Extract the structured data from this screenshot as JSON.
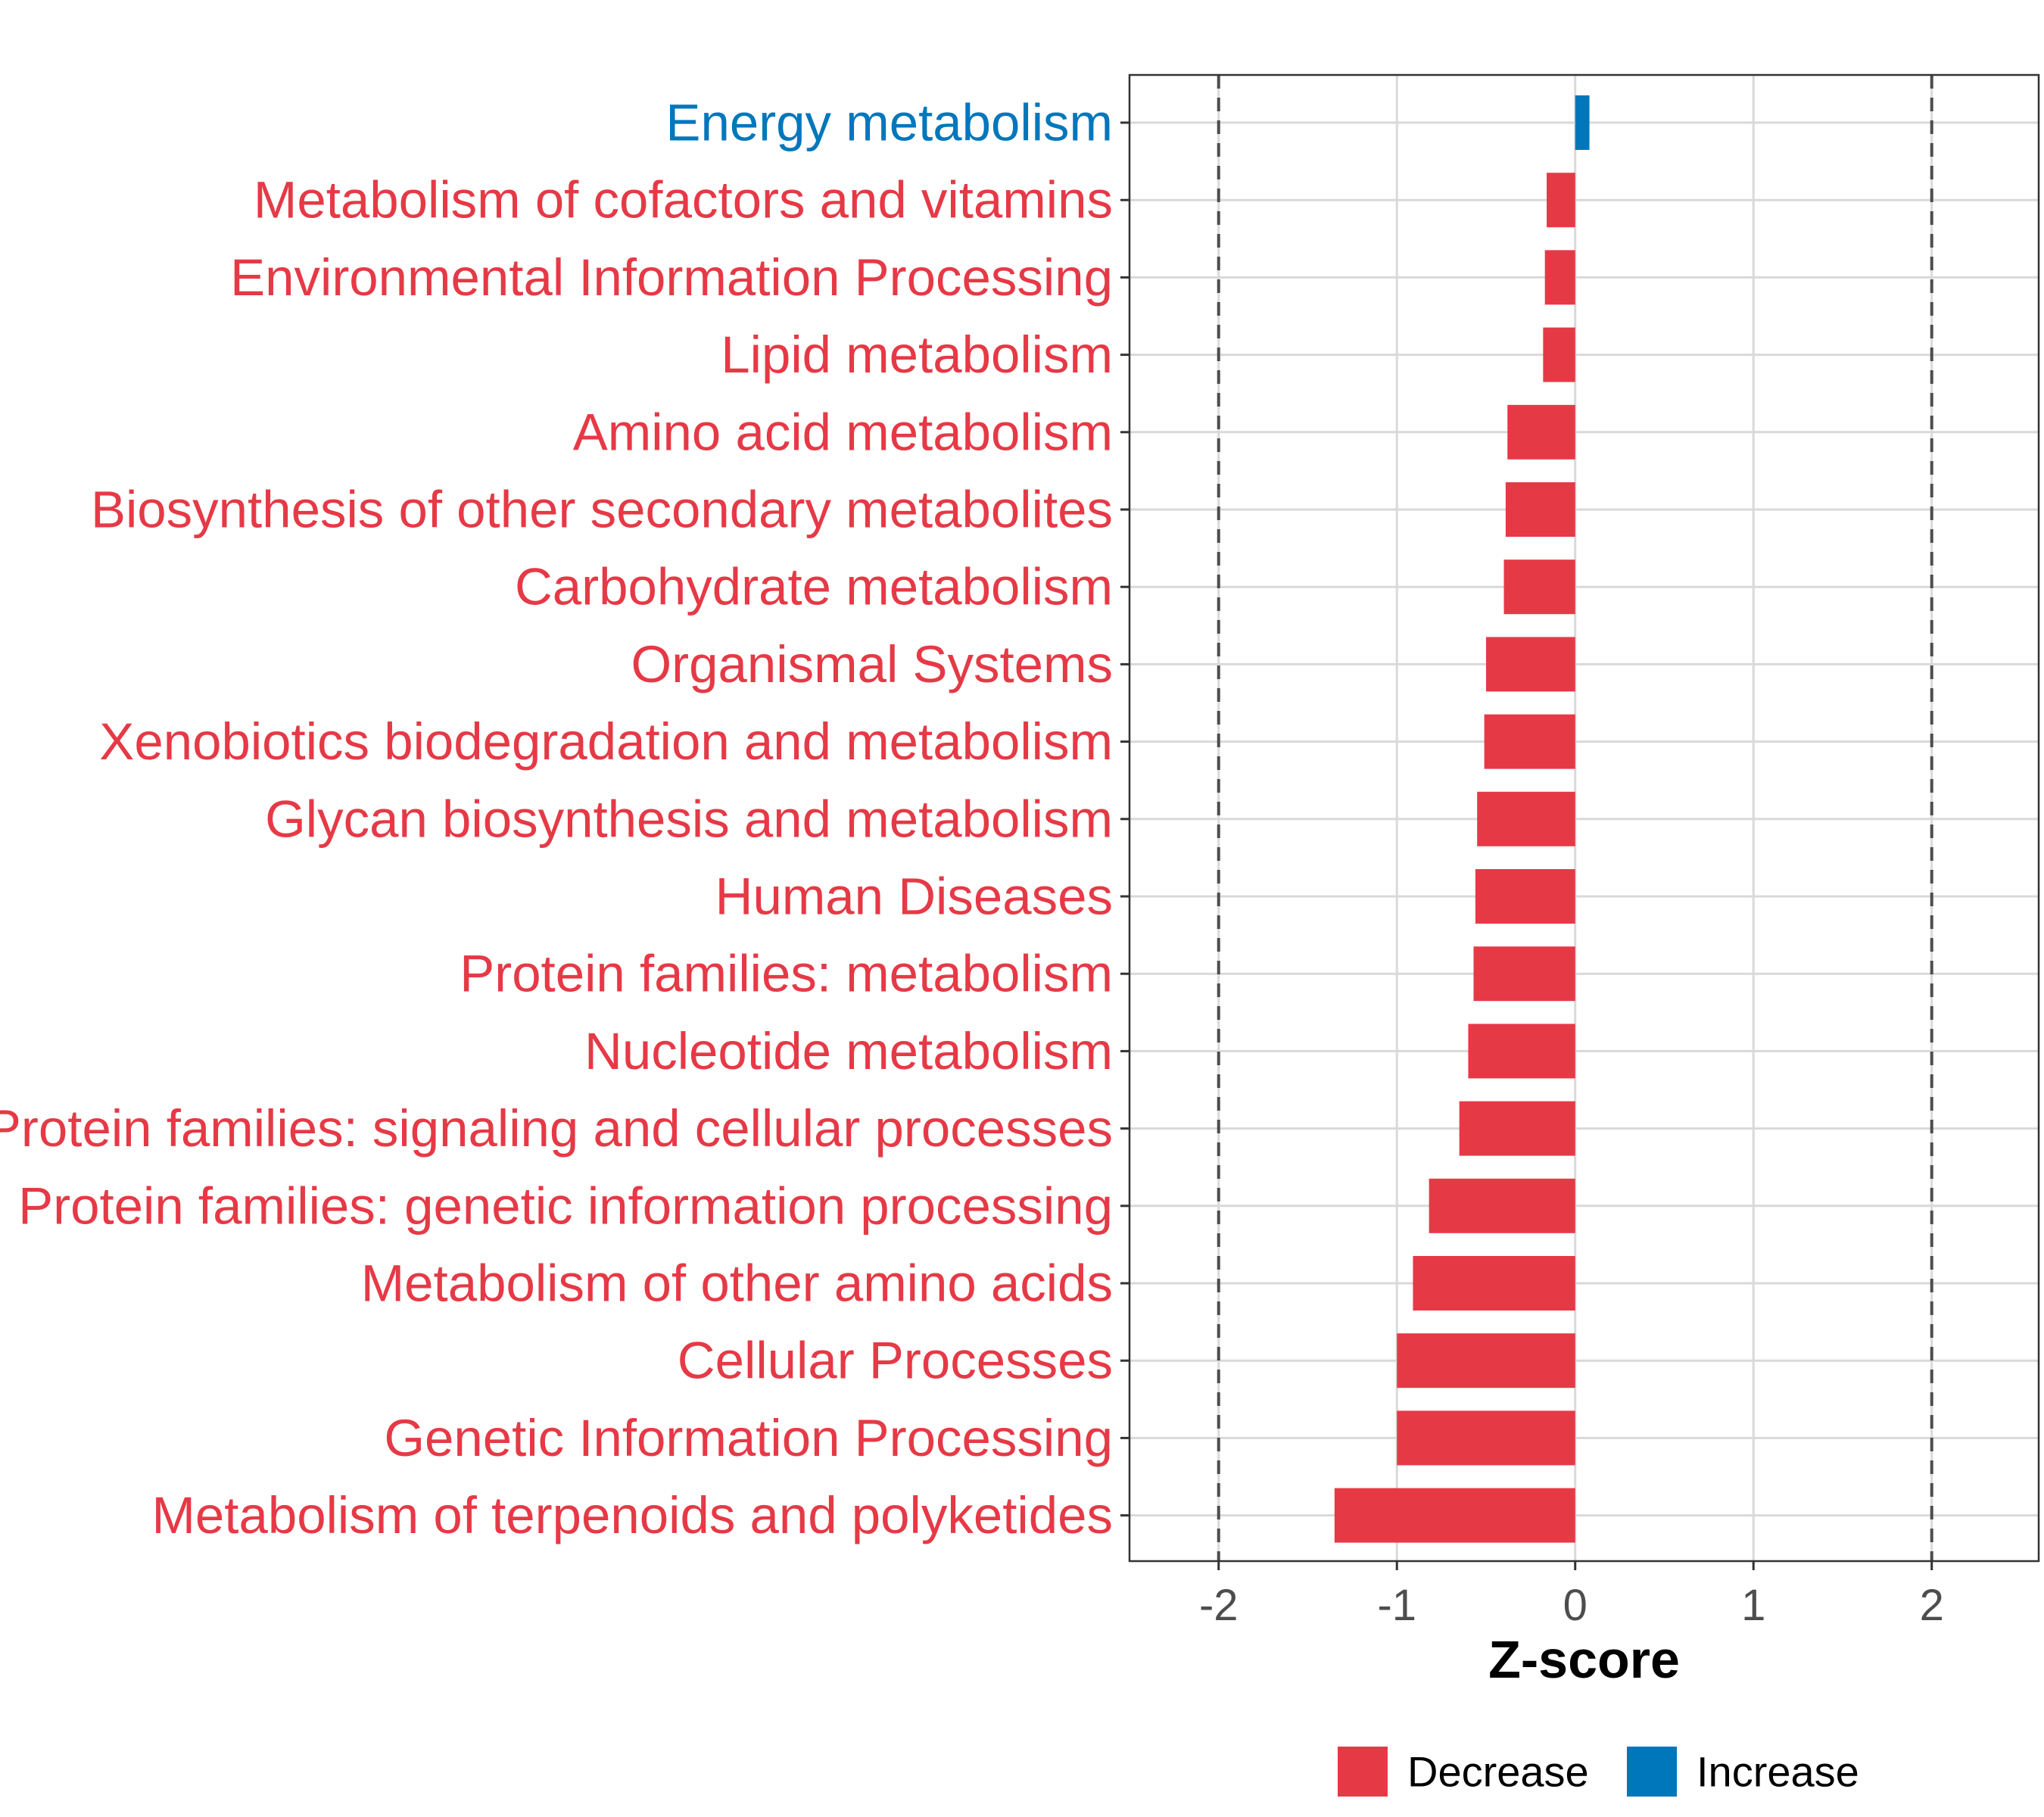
{
  "chart_data": {
    "type": "bar",
    "orientation": "horizontal",
    "title": "",
    "xlabel": "Z-score",
    "ylabel": "",
    "xlim": [
      -2.5,
      2.6
    ],
    "xticks": [
      -2,
      -1,
      0,
      1,
      2
    ],
    "reference_lines": [
      -2,
      2
    ],
    "grid": true,
    "categories": [
      "Energy metabolism",
      "Metabolism of cofactors and vitamins",
      "Environmental Information Processing",
      "Lipid metabolism",
      "Amino acid metabolism",
      "Biosynthesis of other secondary metabolites",
      "Carbohydrate metabolism",
      "Organismal Systems",
      "Xenobiotics biodegradation and metabolism",
      "Glycan biosynthesis and metabolism",
      "Human Diseases",
      "Protein families: metabolism",
      "Nucleotide metabolism",
      "Protein families: signaling and cellular processes",
      "Protein families: genetic information processing",
      "Metabolism of other amino acids",
      "Cellular Processes",
      "Genetic Information Processing",
      "Metabolism of terpenoids and polyketides"
    ],
    "values": [
      0.08,
      -0.16,
      -0.17,
      -0.18,
      -0.38,
      -0.39,
      -0.4,
      -0.5,
      -0.51,
      -0.55,
      -0.56,
      -0.57,
      -0.6,
      -0.65,
      -0.82,
      -0.91,
      -1.0,
      -1.0,
      -1.35
    ],
    "groups": [
      "Increase",
      "Decrease",
      "Decrease",
      "Decrease",
      "Decrease",
      "Decrease",
      "Decrease",
      "Decrease",
      "Decrease",
      "Decrease",
      "Decrease",
      "Decrease",
      "Decrease",
      "Decrease",
      "Decrease",
      "Decrease",
      "Decrease",
      "Decrease",
      "Decrease"
    ],
    "legend": {
      "position": "bottom",
      "entries": [
        {
          "label": "Decrease",
          "color": "#E63946"
        },
        {
          "label": "Increase",
          "color": "#0077BB"
        }
      ]
    }
  }
}
